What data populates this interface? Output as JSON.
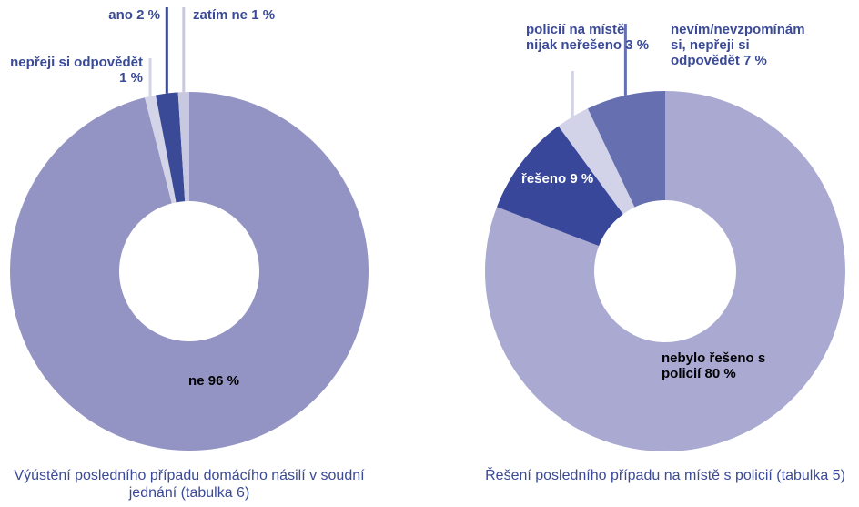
{
  "chart_data": [
    {
      "type": "pie",
      "donut": true,
      "title": "Výústění posledního případu domácího násilí v soudní jednání (tabulka 6)",
      "categories": [
        "ne",
        "nepřeji si odpovědět",
        "ano",
        "zatím ne"
      ],
      "values": [
        96,
        1,
        2,
        1
      ],
      "value_labels": [
        "96 %",
        "1 %",
        "2 %",
        "1 %"
      ],
      "colors": [
        "#9494c4",
        "#d4d4e8",
        "#3a4a96",
        "#c8c8e0"
      ]
    },
    {
      "type": "pie",
      "donut": true,
      "title": "Řešení posledního případu na místě s policií (tabulka 5)",
      "categories": [
        "nebylo řešeno s policií",
        "řešeno",
        "policií na místě nijak neřešeno",
        "nevím/nevzpomínám si, nepřeji si odpovědět"
      ],
      "values": [
        80,
        9,
        3,
        7
      ],
      "value_labels": [
        "80 %",
        "9 %",
        "3 %",
        "7 %"
      ],
      "colors": [
        "#a9a9d2",
        "#38479a",
        "#d2d2e8",
        "#6670b0"
      ]
    }
  ]
}
